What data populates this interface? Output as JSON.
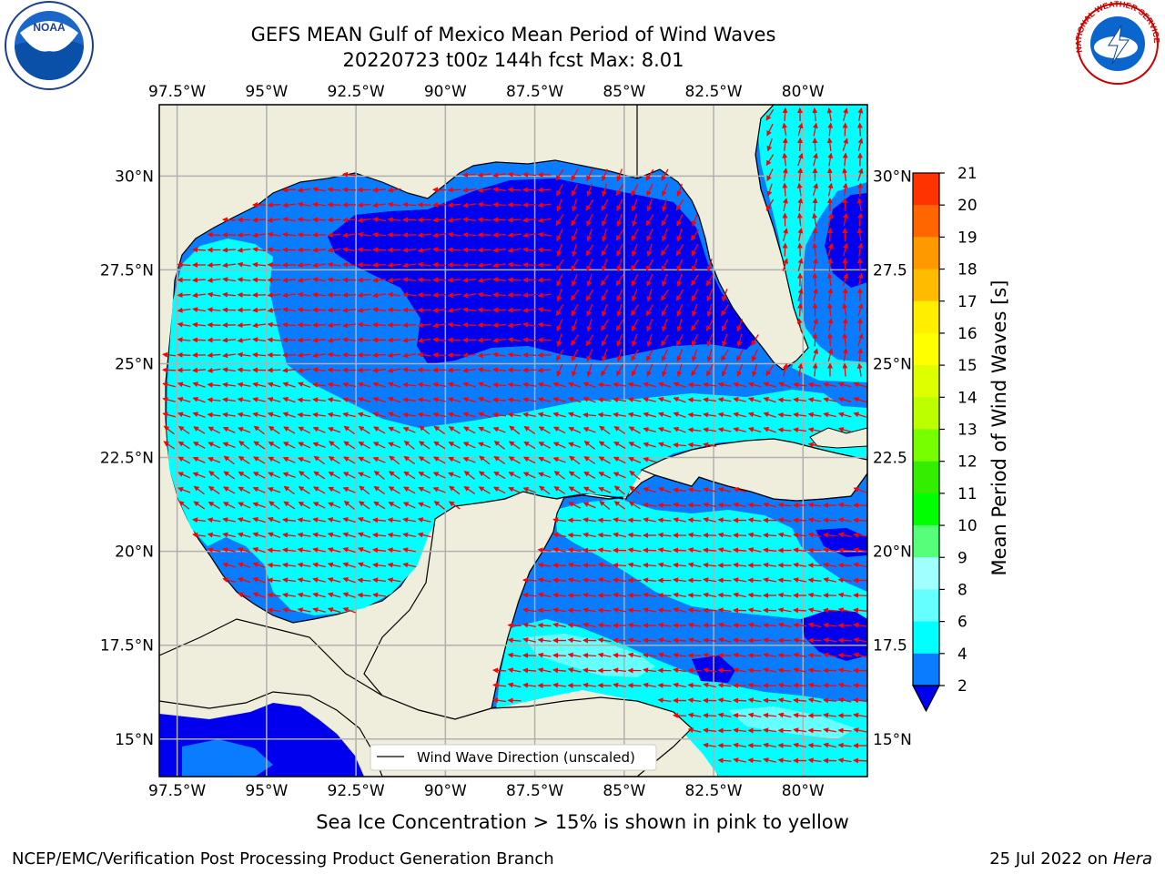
{
  "title": {
    "line1": "GEFS MEAN Gulf of Mexico Mean Period of Wind Waves",
    "line2": "20220723 t00z 144h fcst   Max: 8.01"
  },
  "map": {
    "lon_labels": [
      "97.5°W",
      "95°W",
      "92.5°W",
      "90°W",
      "87.5°W",
      "85°W",
      "82.5°W",
      "80°W"
    ],
    "lat_labels_left": [
      "30°N",
      "27.5°N",
      "25°N",
      "22.5°N",
      "20°N",
      "17.5°N",
      "15°N"
    ],
    "lat_labels_right": [
      "30°N",
      "27.5",
      "25°N",
      "22.5",
      "20°N",
      "17.5",
      "15°N"
    ],
    "lon_range": [
      -98,
      -78.2
    ],
    "lat_range": [
      14,
      31.9
    ],
    "legend_label": "Wind Wave Direction (unscaled)",
    "colors": {
      "land": "#efeedc",
      "band_2_4": "#0a7cff",
      "band_below_2": "#0000ee",
      "band_4_6": "#00ffff",
      "band_6_8": "#66ffff",
      "arrow": "#ff0000",
      "grid": "#b0b0b0"
    }
  },
  "colorbar": {
    "label": "Mean Period of Wind Waves [s]",
    "ticks": [
      "2",
      "4",
      "6",
      "8",
      "9",
      "10",
      "11",
      "12",
      "13",
      "14",
      "15",
      "16",
      "17",
      "18",
      "19",
      "20",
      "21"
    ],
    "colors": [
      "#0a7cff",
      "#00ffff",
      "#66ffff",
      "#a0ffff",
      "#55ff7a",
      "#00ff00",
      "#33ee00",
      "#77ff00",
      "#bbff00",
      "#ddff00",
      "#ffff00",
      "#ffee00",
      "#ffbb00",
      "#ff9900",
      "#ff6600",
      "#ff3300"
    ],
    "under_color": "#0000ee"
  },
  "footer": {
    "sea_ice": "Sea Ice Concentration > 15% is shown in pink to yellow",
    "credit": "NCEP/EMC/Verification Post Processing Product Generation Branch",
    "date": "25 Jul 2022 on ",
    "machine": "Hera"
  },
  "logos": {
    "noaa": "NOAA",
    "nws": "NATIONAL WEATHER SERVICE"
  }
}
